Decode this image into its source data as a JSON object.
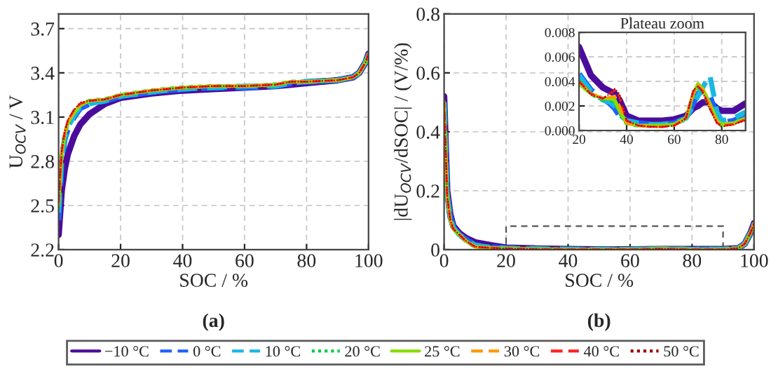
{
  "chart_data": [
    {
      "type": "line",
      "xlabel": "SOC / %",
      "ylabel": "U$_{OCV}$ / V",
      "annotations": [
        "(a)"
      ],
      "grid": true,
      "legend": "bottom",
      "xlim": [
        0,
        100
      ],
      "xticks": [
        0,
        20,
        40,
        60,
        80,
        100
      ],
      "ylim": [
        2.2,
        3.8
      ],
      "yticks": [
        {
          "value": 2.2,
          "label": "2.2"
        },
        {
          "value": 2.5,
          "label": "2.5"
        },
        {
          "value": 2.8,
          "label": "2.8"
        },
        {
          "value": 3.1,
          "label": "3.1"
        },
        {
          "value": 3.4,
          "label": "3.4"
        },
        {
          "value": 3.7,
          "label": "3.7"
        }
      ],
      "x": [
        0,
        1,
        2,
        3,
        5,
        7,
        10,
        15,
        20,
        30,
        40,
        50,
        60,
        70,
        75,
        80,
        90,
        95,
        97,
        99,
        100
      ],
      "series": [
        {
          "name": "−10 °C",
          "color": "#4b0c9c",
          "line_style": "solid",
          "values": [
            2.3,
            2.6,
            2.75,
            2.85,
            2.97,
            3.05,
            3.12,
            3.19,
            3.23,
            3.26,
            3.28,
            3.29,
            3.3,
            3.31,
            3.32,
            3.33,
            3.35,
            3.37,
            3.4,
            3.47,
            3.53
          ]
        },
        {
          "name": "0 °C",
          "color": "#1f5fff",
          "line_style": "dashed",
          "values": [
            2.4,
            2.8,
            2.95,
            3.02,
            3.1,
            3.16,
            3.19,
            3.21,
            3.24,
            3.27,
            3.29,
            3.3,
            3.3,
            3.31,
            3.33,
            3.34,
            3.35,
            3.37,
            3.4,
            3.47,
            3.53
          ]
        },
        {
          "name": "10 °C",
          "color": "#17b8e6",
          "line_style": "dashed",
          "values": [
            2.45,
            2.82,
            2.96,
            3.03,
            3.11,
            3.17,
            3.19,
            3.21,
            3.24,
            3.27,
            3.29,
            3.3,
            3.31,
            3.31,
            3.33,
            3.34,
            3.35,
            3.37,
            3.4,
            3.47,
            3.53
          ]
        },
        {
          "name": "20 °C",
          "color": "#00cc44",
          "line_style": "dotted",
          "values": [
            2.5,
            2.85,
            2.98,
            3.06,
            3.13,
            3.18,
            3.21,
            3.22,
            3.25,
            3.28,
            3.3,
            3.31,
            3.31,
            3.32,
            3.34,
            3.34,
            3.35,
            3.37,
            3.4,
            3.47,
            3.53
          ]
        },
        {
          "name": "25 °C",
          "color": "#88dd00",
          "line_style": "solid",
          "values": [
            2.5,
            2.85,
            2.98,
            3.06,
            3.13,
            3.18,
            3.21,
            3.22,
            3.25,
            3.28,
            3.3,
            3.31,
            3.31,
            3.32,
            3.34,
            3.34,
            3.35,
            3.37,
            3.4,
            3.47,
            3.53
          ]
        },
        {
          "name": "30 °C",
          "color": "#ff9900",
          "line_style": "dashed",
          "values": [
            2.5,
            2.86,
            2.99,
            3.07,
            3.14,
            3.19,
            3.21,
            3.22,
            3.25,
            3.28,
            3.3,
            3.31,
            3.31,
            3.32,
            3.34,
            3.34,
            3.35,
            3.37,
            3.4,
            3.47,
            3.53
          ]
        },
        {
          "name": "40 °C",
          "color": "#ff2020",
          "line_style": "dashed",
          "values": [
            2.52,
            2.87,
            3.0,
            3.08,
            3.15,
            3.19,
            3.21,
            3.22,
            3.25,
            3.28,
            3.3,
            3.31,
            3.31,
            3.32,
            3.34,
            3.34,
            3.35,
            3.37,
            3.4,
            3.47,
            3.53
          ]
        },
        {
          "name": "50 °C",
          "color": "#990000",
          "line_style": "dotted",
          "values": [
            2.52,
            2.87,
            3.0,
            3.08,
            3.15,
            3.2,
            3.21,
            3.22,
            3.25,
            3.28,
            3.3,
            3.31,
            3.31,
            3.32,
            3.34,
            3.34,
            3.35,
            3.37,
            3.4,
            3.47,
            3.53
          ]
        }
      ]
    },
    {
      "type": "line",
      "xlabel": "SOC / %",
      "ylabel": "|dU$_{OCV}$/dSOC| / (V/%)",
      "annotations": [
        "(b)"
      ],
      "grid": true,
      "xlim": [
        0,
        100
      ],
      "xticks": [
        0,
        20,
        40,
        60,
        80,
        100
      ],
      "ylim": [
        0,
        0.8
      ],
      "yticks": [
        0,
        0.2,
        0.4,
        0.6,
        0.8
      ],
      "x": [
        0,
        1,
        2,
        3,
        5,
        7,
        10,
        15,
        20,
        30,
        40,
        50,
        60,
        70,
        80,
        90,
        95,
        97,
        99,
        100
      ],
      "series": [
        {
          "color": "#4b0c9c",
          "line_style": "solid",
          "values": [
            0.52,
            0.2,
            0.12,
            0.08,
            0.055,
            0.04,
            0.025,
            0.015,
            0.007,
            0.004,
            0.002,
            0.001,
            0.001,
            0.002,
            0.002,
            0.002,
            0.005,
            0.02,
            0.06,
            0.09
          ]
        },
        {
          "color": "#1f5fff",
          "line_style": "dashed",
          "values": [
            0.5,
            0.19,
            0.11,
            0.075,
            0.05,
            0.035,
            0.015,
            0.008,
            0.005,
            0.003,
            0.001,
            0.001,
            0.001,
            0.003,
            0.001,
            0.001,
            0.005,
            0.02,
            0.06,
            0.09
          ]
        },
        {
          "color": "#17b8e6",
          "line_style": "dashed",
          "values": [
            0.5,
            0.19,
            0.11,
            0.075,
            0.05,
            0.035,
            0.015,
            0.008,
            0.005,
            0.003,
            0.001,
            0.001,
            0.001,
            0.003,
            0.001,
            0.002,
            0.005,
            0.02,
            0.06,
            0.09
          ]
        },
        {
          "color": "#00cc44",
          "line_style": "dotted",
          "values": [
            0.5,
            0.18,
            0.1,
            0.07,
            0.05,
            0.03,
            0.01,
            0.006,
            0.004,
            0.002,
            0.001,
            0.001,
            0.001,
            0.003,
            0.001,
            0.001,
            0.005,
            0.02,
            0.06,
            0.09
          ]
        },
        {
          "color": "#88dd00",
          "line_style": "solid",
          "values": [
            0.5,
            0.18,
            0.1,
            0.07,
            0.05,
            0.03,
            0.01,
            0.006,
            0.004,
            0.002,
            0.001,
            0.001,
            0.001,
            0.003,
            0.001,
            0.001,
            0.005,
            0.02,
            0.06,
            0.09
          ]
        },
        {
          "color": "#ff9900",
          "line_style": "dashed",
          "values": [
            0.5,
            0.18,
            0.1,
            0.07,
            0.05,
            0.03,
            0.01,
            0.006,
            0.004,
            0.002,
            0.001,
            0.001,
            0.001,
            0.003,
            0.001,
            0.001,
            0.005,
            0.02,
            0.06,
            0.09
          ]
        },
        {
          "color": "#ff2020",
          "line_style": "dashed",
          "values": [
            0.51,
            0.18,
            0.1,
            0.07,
            0.05,
            0.03,
            0.01,
            0.006,
            0.004,
            0.002,
            0.001,
            0.001,
            0.001,
            0.003,
            0.001,
            0.001,
            0.005,
            0.02,
            0.06,
            0.09
          ]
        },
        {
          "color": "#990000",
          "line_style": "dotted",
          "values": [
            0.51,
            0.18,
            0.1,
            0.07,
            0.05,
            0.03,
            0.01,
            0.006,
            0.004,
            0.002,
            0.001,
            0.001,
            0.001,
            0.003,
            0.001,
            0.001,
            0.005,
            0.02,
            0.06,
            0.09
          ]
        }
      ]
    },
    {
      "type": "line",
      "title": "Plateau zoom",
      "grid": true,
      "xlim": [
        20,
        90
      ],
      "xticks": [
        20,
        40,
        60,
        80
      ],
      "ylim": [
        0,
        0.008
      ],
      "yticks": [
        {
          "value": 0,
          "label": "0.000"
        },
        {
          "value": 0.002,
          "label": "0.002"
        },
        {
          "value": 0.004,
          "label": "0.004"
        },
        {
          "value": 0.006,
          "label": "0.006"
        },
        {
          "value": 0.008,
          "label": "0.008"
        }
      ],
      "x": [
        20,
        25,
        30,
        33,
        35,
        37,
        40,
        45,
        50,
        55,
        60,
        65,
        68,
        70,
        72,
        75,
        78,
        80,
        85,
        90
      ],
      "series": [
        {
          "color": "#4b0c9c",
          "line_style": "solid",
          "values": [
            0.0068,
            0.0045,
            0.0035,
            0.0032,
            0.003,
            0.0025,
            0.0012,
            0.0008,
            0.0008,
            0.0008,
            0.0009,
            0.0012,
            0.0018,
            0.002,
            0.0023,
            0.0023,
            0.0018,
            0.0016,
            0.0016,
            0.0022
          ]
        },
        {
          "color": "#1f5fff",
          "line_style": "dashed",
          "values": [
            0.0046,
            0.0033,
            0.0026,
            0.0022,
            0.0018,
            0.0012,
            0.0008,
            0.0006,
            0.0005,
            0.0005,
            0.0006,
            0.001,
            0.0022,
            0.003,
            0.0032,
            0.0028,
            0.0012,
            0.0006,
            0.0008,
            0.0012
          ]
        },
        {
          "color": "#17b8e6",
          "line_style": "dashed",
          "values": [
            0.0045,
            0.0032,
            0.0025,
            0.0023,
            0.002,
            0.0013,
            0.0008,
            0.0006,
            0.0005,
            0.0005,
            0.0006,
            0.001,
            0.002,
            0.0028,
            0.0035,
            0.0045,
            0.0015,
            0.0008,
            0.001,
            0.0015
          ]
        },
        {
          "color": "#00cc44",
          "line_style": "dotted",
          "values": [
            0.004,
            0.003,
            0.0025,
            0.0025,
            0.0024,
            0.0015,
            0.0006,
            0.0004,
            0.0004,
            0.0004,
            0.0005,
            0.001,
            0.0028,
            0.0036,
            0.0032,
            0.002,
            0.0008,
            0.0004,
            0.0006,
            0.001
          ]
        },
        {
          "color": "#88dd00",
          "line_style": "solid",
          "values": [
            0.0038,
            0.003,
            0.0026,
            0.0026,
            0.0025,
            0.0016,
            0.0006,
            0.0004,
            0.0004,
            0.0004,
            0.0005,
            0.001,
            0.003,
            0.0038,
            0.0034,
            0.0022,
            0.0008,
            0.0005,
            0.0006,
            0.001
          ]
        },
        {
          "color": "#ff9900",
          "line_style": "dashed",
          "values": [
            0.004,
            0.003,
            0.0026,
            0.0027,
            0.0028,
            0.002,
            0.0006,
            0.0004,
            0.0003,
            0.0003,
            0.0004,
            0.001,
            0.003,
            0.0037,
            0.0033,
            0.002,
            0.0007,
            0.0004,
            0.0005,
            0.0009
          ]
        },
        {
          "color": "#ff2020",
          "line_style": "dashed",
          "values": [
            0.004,
            0.003,
            0.0026,
            0.003,
            0.0033,
            0.0028,
            0.0008,
            0.0004,
            0.0003,
            0.0003,
            0.0004,
            0.001,
            0.0032,
            0.0036,
            0.0032,
            0.0018,
            0.0006,
            0.0004,
            0.0005,
            0.0009
          ]
        },
        {
          "color": "#990000",
          "line_style": "dotted",
          "values": [
            0.004,
            0.0029,
            0.0026,
            0.003,
            0.0034,
            0.003,
            0.0008,
            0.0004,
            0.0003,
            0.0003,
            0.0004,
            0.001,
            0.0033,
            0.0036,
            0.0031,
            0.0017,
            0.0006,
            0.0003,
            0.0005,
            0.0008
          ]
        }
      ]
    }
  ]
}
